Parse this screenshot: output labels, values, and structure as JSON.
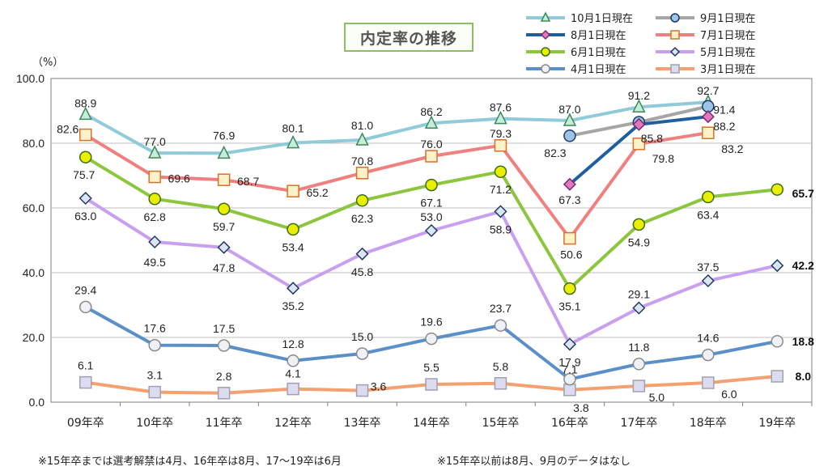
{
  "chart_data": {
    "type": "line",
    "title": "内定率の推移",
    "unit": "（%）",
    "ylim": [
      0,
      100
    ],
    "yticks": [
      "0.0",
      "20.0",
      "40.0",
      "60.0",
      "80.0",
      "100.0"
    ],
    "grid": true,
    "legend_position": "top-right",
    "categories": [
      "09年卒",
      "10年卒",
      "11年卒",
      "12年卒",
      "13年卒",
      "14年卒",
      "15年卒",
      "16年卒",
      "17年卒",
      "18年卒",
      "19年卒"
    ],
    "series": [
      {
        "name": "10月1日現在",
        "color": "#8fcbd8",
        "marker": "triangle",
        "marker_fill": "#c8ecdc",
        "marker_stroke": "#3a8a5a",
        "values": [
          88.9,
          77.0,
          76.9,
          80.1,
          81.0,
          86.2,
          87.6,
          87.0,
          91.2,
          92.7,
          null
        ]
      },
      {
        "name": "9月1日現在",
        "color": "#a6a6a6",
        "marker": "circle",
        "marker_fill": "#9dc3e6",
        "marker_stroke": "#1f3864",
        "values": [
          null,
          null,
          null,
          null,
          null,
          null,
          null,
          82.3,
          86.5,
          91.4,
          null
        ]
      },
      {
        "name": "8月1日現在",
        "color": "#1f5f9e",
        "marker": "diamond",
        "marker_fill": "#e377c2",
        "marker_stroke": "#7b2c68",
        "values": [
          null,
          null,
          null,
          null,
          null,
          null,
          null,
          67.3,
          85.8,
          88.2,
          null
        ]
      },
      {
        "name": "7月1日現在",
        "color": "#f08080",
        "marker": "square",
        "marker_fill": "#fff2c8",
        "marker_stroke": "#d9702a",
        "values": [
          82.6,
          69.6,
          68.7,
          65.2,
          70.8,
          76.0,
          79.3,
          50.6,
          79.8,
          83.2,
          null
        ]
      },
      {
        "name": "6月1日現在",
        "color": "#8cc63f",
        "marker": "circle",
        "marker_fill": "#e8f000",
        "marker_stroke": "#3d6b1a",
        "values": [
          75.7,
          62.8,
          59.7,
          53.4,
          62.3,
          67.1,
          71.2,
          35.1,
          54.9,
          63.4,
          65.7
        ]
      },
      {
        "name": "5月1日現在",
        "color": "#c9a0f0",
        "marker": "diamond",
        "marker_fill": "#dce6f2",
        "marker_stroke": "#1f3864",
        "values": [
          63.0,
          49.5,
          47.8,
          35.2,
          45.8,
          53.0,
          58.9,
          17.9,
          29.1,
          37.5,
          42.2
        ]
      },
      {
        "name": "4月1日現在",
        "color": "#5b8fc8",
        "marker": "circle",
        "marker_fill": "#eef2f6",
        "marker_stroke": "#8a8a8a",
        "values": [
          29.4,
          17.6,
          17.5,
          12.8,
          15.0,
          19.6,
          23.7,
          7.1,
          11.8,
          14.6,
          18.8
        ]
      },
      {
        "name": "3月1日現在",
        "color": "#f4a070",
        "marker": "square",
        "marker_fill": "#dcdcf0",
        "marker_stroke": "#a0a0b0",
        "values": [
          6.1,
          3.1,
          2.8,
          4.1,
          3.6,
          5.5,
          5.8,
          3.8,
          5.0,
          6.0,
          8.0
        ]
      }
    ],
    "data_labels": [
      {
        "series": "10月1日現在",
        "labels": [
          "88.9",
          "77.0",
          "76.9",
          "80.1",
          "81.0",
          "86.2",
          "87.6",
          "87.0",
          "91.2",
          "92.7",
          null
        ]
      },
      {
        "series": "9月1日現在",
        "labels": [
          null,
          null,
          null,
          null,
          null,
          null,
          null,
          "82.3",
          null,
          "91.4",
          null
        ]
      },
      {
        "series": "8月1日現在",
        "labels": [
          null,
          null,
          null,
          null,
          null,
          null,
          null,
          "67.3",
          "85.8",
          "88.2",
          null
        ]
      },
      {
        "series": "7月1日現在",
        "labels": [
          "82.6",
          "69.6",
          "68.7",
          "65.2",
          "70.8",
          "76.0",
          "79.3",
          "50.6",
          "79.8",
          "83.2",
          null
        ]
      },
      {
        "series": "6月1日現在",
        "labels": [
          "75.7",
          "62.8",
          "59.7",
          "53.4",
          "62.3",
          "67.1",
          "71.2",
          "35.1",
          "54.9",
          "63.4",
          "65.7"
        ]
      },
      {
        "series": "5月1日現在",
        "labels": [
          "63.0",
          "49.5",
          "47.8",
          "35.2",
          "45.8",
          "53.0",
          "58.9",
          "17.9",
          "29.1",
          "37.5",
          "42.2"
        ]
      },
      {
        "series": "4月1日現在",
        "labels": [
          "29.4",
          "17.6",
          "17.5",
          "12.8",
          "15.0",
          "19.6",
          "23.7",
          "7.1",
          "11.8",
          "14.6",
          "18.8"
        ]
      },
      {
        "series": "3月1日現在",
        "labels": [
          "6.1",
          "3.1",
          "2.8",
          "4.1",
          "3.6",
          "5.5",
          "5.8",
          "3.8",
          "5.0",
          "6.0",
          "8.0"
        ]
      }
    ]
  },
  "footnotes": {
    "left": "※15年卒までは選考解禁は4月、16年卒は8月、17～19卒は6月",
    "right": "※15年卒以前は8月、9月のデータはなし"
  }
}
